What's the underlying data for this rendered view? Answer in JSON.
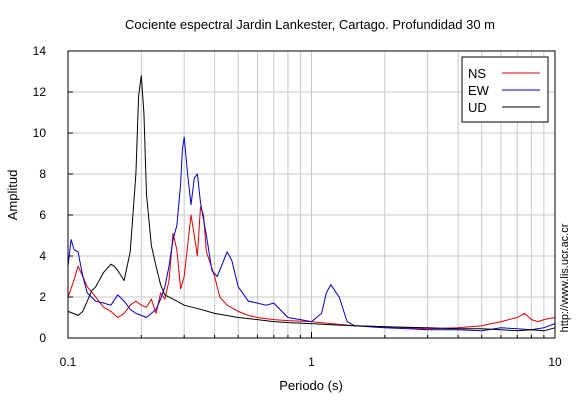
{
  "chart_data": {
    "type": "line",
    "title": "Cociente espectral Jardin Lankester, Cartago. Profundidad 30 m",
    "xlabel": "Periodo (s)",
    "ylabel": "Amplitud",
    "xscale": "log",
    "xlim": [
      0.1,
      10
    ],
    "ylim": [
      0,
      14
    ],
    "x_tick_labels": [
      {
        "value": 0.1,
        "label": "0.1"
      },
      {
        "value": 1,
        "label": "1"
      },
      {
        "value": 10,
        "label": "10"
      }
    ],
    "y_ticks": [
      0,
      2,
      4,
      6,
      8,
      10,
      12,
      14
    ],
    "grid": true,
    "legend_position": "top-right",
    "credit": "http://www.lis.ucr.ac.cr",
    "series": [
      {
        "name": "NS",
        "color": "#dd0000",
        "x": [
          0.1,
          0.105,
          0.11,
          0.115,
          0.12,
          0.13,
          0.14,
          0.15,
          0.16,
          0.17,
          0.18,
          0.19,
          0.2,
          0.21,
          0.22,
          0.23,
          0.24,
          0.25,
          0.26,
          0.27,
          0.28,
          0.29,
          0.3,
          0.31,
          0.32,
          0.33,
          0.34,
          0.35,
          0.36,
          0.37,
          0.38,
          0.4,
          0.42,
          0.45,
          0.5,
          0.55,
          0.6,
          0.7,
          0.8,
          1.0,
          1.2,
          1.5,
          2.0,
          2.5,
          3.0,
          4.0,
          5.0,
          6.0,
          7.0,
          7.5,
          8.0,
          8.5,
          9.0,
          10.0
        ],
        "y": [
          2.0,
          2.7,
          3.5,
          3.0,
          2.5,
          2.0,
          1.5,
          1.3,
          1.0,
          1.2,
          1.6,
          1.8,
          1.6,
          1.5,
          1.9,
          1.2,
          2.2,
          1.9,
          2.8,
          5.1,
          4.3,
          2.4,
          3.0,
          4.5,
          6.0,
          5.0,
          4.0,
          6.4,
          6.0,
          4.2,
          3.8,
          3.0,
          2.0,
          1.6,
          1.3,
          1.1,
          1.0,
          0.9,
          0.85,
          0.8,
          0.7,
          0.6,
          0.55,
          0.5,
          0.45,
          0.5,
          0.6,
          0.8,
          1.0,
          1.2,
          0.9,
          0.8,
          0.9,
          1.0
        ]
      },
      {
        "name": "EW",
        "color": "#0000cc",
        "x": [
          0.1,
          0.103,
          0.106,
          0.11,
          0.115,
          0.12,
          0.13,
          0.14,
          0.15,
          0.16,
          0.17,
          0.18,
          0.19,
          0.2,
          0.21,
          0.22,
          0.23,
          0.24,
          0.25,
          0.26,
          0.27,
          0.28,
          0.29,
          0.295,
          0.3,
          0.31,
          0.32,
          0.33,
          0.34,
          0.35,
          0.37,
          0.39,
          0.41,
          0.43,
          0.45,
          0.47,
          0.5,
          0.55,
          0.6,
          0.65,
          0.7,
          0.8,
          0.9,
          1.0,
          1.1,
          1.15,
          1.2,
          1.3,
          1.4,
          1.5,
          2.0,
          2.5,
          3.0,
          4.0,
          5.0,
          6.0,
          7.0,
          8.0,
          9.0,
          10.0
        ],
        "y": [
          3.5,
          4.8,
          4.3,
          4.2,
          3.0,
          2.2,
          1.8,
          1.7,
          1.6,
          2.1,
          1.8,
          1.4,
          1.2,
          1.1,
          1.0,
          1.2,
          1.4,
          1.9,
          2.5,
          3.5,
          4.8,
          5.5,
          7.5,
          9.2,
          9.8,
          8.0,
          6.5,
          7.8,
          8.0,
          6.6,
          5.0,
          3.3,
          3.0,
          3.6,
          4.2,
          3.8,
          2.5,
          1.8,
          1.7,
          1.6,
          1.7,
          1.0,
          0.9,
          0.8,
          1.2,
          2.2,
          2.6,
          2.0,
          0.8,
          0.6,
          0.5,
          0.45,
          0.4,
          0.4,
          0.35,
          0.5,
          0.45,
          0.4,
          0.5,
          0.7
        ]
      },
      {
        "name": "UD",
        "color": "#000000",
        "x": [
          0.1,
          0.105,
          0.11,
          0.115,
          0.12,
          0.125,
          0.13,
          0.14,
          0.15,
          0.155,
          0.16,
          0.17,
          0.18,
          0.19,
          0.195,
          0.2,
          0.205,
          0.21,
          0.22,
          0.23,
          0.24,
          0.25,
          0.27,
          0.3,
          0.35,
          0.4,
          0.5,
          0.6,
          0.7,
          0.8,
          1.0,
          1.2,
          1.5,
          2.0,
          3.0,
          4.0,
          5.0,
          6.0,
          7.0,
          8.0,
          9.0,
          10.0
        ],
        "y": [
          1.3,
          1.2,
          1.1,
          1.3,
          1.8,
          2.3,
          2.5,
          3.2,
          3.6,
          3.5,
          3.3,
          2.8,
          4.2,
          8.0,
          11.8,
          12.8,
          11.0,
          7.0,
          4.5,
          3.5,
          2.6,
          2.1,
          1.9,
          1.6,
          1.4,
          1.2,
          1.0,
          0.9,
          0.8,
          0.75,
          0.7,
          0.65,
          0.6,
          0.55,
          0.5,
          0.45,
          0.45,
          0.4,
          0.35,
          0.4,
          0.35,
          0.5
        ]
      }
    ]
  }
}
